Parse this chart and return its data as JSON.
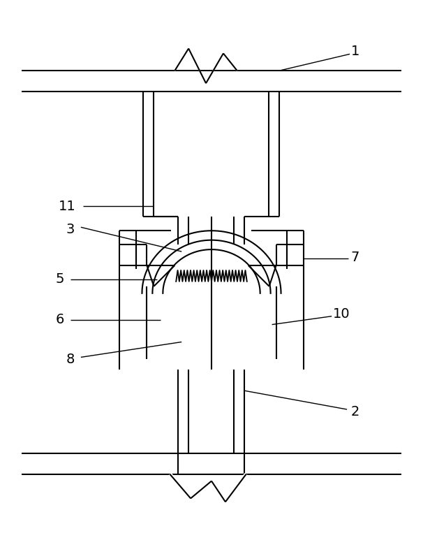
{
  "fig_width": 6.06,
  "fig_height": 7.63,
  "dpi": 100,
  "line_color": "black",
  "lw": 1.5,
  "bg_color": "white"
}
